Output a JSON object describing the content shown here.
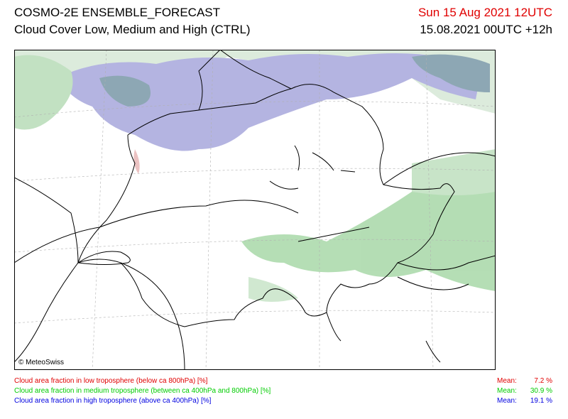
{
  "header": {
    "title": "COSMO-2E ENSEMBLE_FORECAST",
    "subtitle": "Cloud Cover Low, Medium and High (CTRL)",
    "valid_time": "Sun 15 Aug 2021 12UTC",
    "run_time": "15.08.2021 00UTC +12h"
  },
  "map": {
    "copyright": "© MeteoSwiss"
  },
  "legend": [
    {
      "text": "Cloud area fraction in low troposphere (below ca 800hPa) [%]",
      "mean_label": "Mean:",
      "mean": "7.2 %",
      "color": "#e00000"
    },
    {
      "text": "Cloud area fraction in medium troposphere (between ca 400hPa and 800hPa) [%]",
      "mean_label": "Mean:",
      "mean": "30.9 %",
      "color": "#00cc00"
    },
    {
      "text": "Cloud area fraction in high troposphere (above ca 400hPa) [%]",
      "mean_label": "Mean:",
      "mean": "19.1 %",
      "color": "#0000e0"
    }
  ]
}
